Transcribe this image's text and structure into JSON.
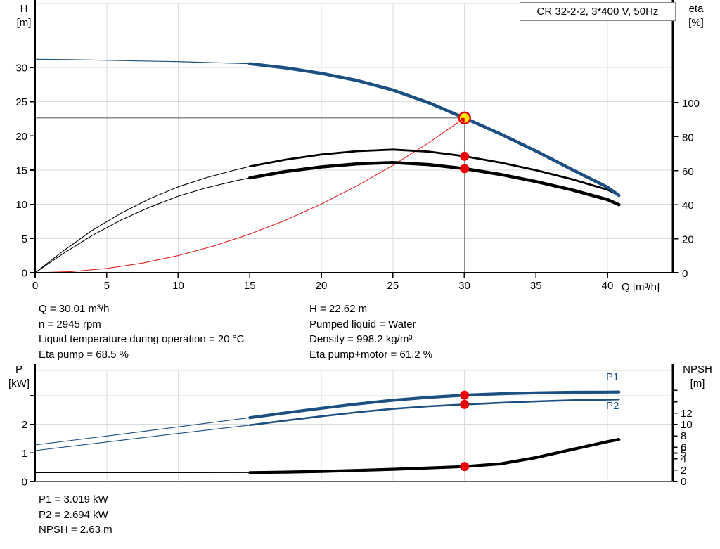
{
  "title_box": "CR 32-2-2, 3*400 V, 50Hz",
  "axes": {
    "top_left": {
      "line1": "H",
      "line2": "[m]"
    },
    "top_right": {
      "line1": "eta",
      "line2": "[%]"
    },
    "top_x": "Q [m³/h]",
    "bottom_left": {
      "line1": "P",
      "line2": "[kW]"
    },
    "bottom_right": {
      "line1": "NPSH",
      "line2": "[m]"
    }
  },
  "curve_labels": {
    "p1": "P1",
    "p2": "P2"
  },
  "operating_point_info": {
    "left": [
      "Q = 30.01 m³/h",
      "n = 2945 rpm",
      "Liquid temperature during operation = 20 °C",
      "Eta pump = 68.5 %"
    ],
    "right": [
      "H = 22.62 m",
      "Pumped liquid = Water",
      "Density = 998.2 kg/m³",
      "Eta pump+motor = 61.2 %"
    ],
    "power": [
      "P1 = 3.019 kW",
      "P2 = 2.694 kW",
      "NPSH = 2.63 m"
    ]
  },
  "colors": {
    "curve_blue": "#1c4f82",
    "curve_red": "#e02020",
    "curve_black": "#000000",
    "marker_red": "#ee0000",
    "marker_ring": "#e00000",
    "marker_yellow": "#ffe400",
    "duty_line_gray": "#8c8c8c",
    "grid": "#dcdcdc",
    "axis": "#000000",
    "bottom_axis_gray": "#666666",
    "label_blue": "#1c4f82"
  },
  "chart_data": [
    {
      "type": "line",
      "title": "CR 32-2-2, 3*400 V, 50Hz",
      "xlabel": "Q [m³/h]",
      "ylabel": "H [m]",
      "y2label": "eta [%]",
      "xlim": [
        0,
        44.6
      ],
      "ylim": [
        0,
        39.4
      ],
      "y2lim": [
        0,
        158
      ],
      "grid": true,
      "x_ticks": [
        0,
        5,
        10,
        15,
        20,
        25,
        30,
        35,
        40
      ],
      "y_ticks": [
        0,
        5,
        10,
        15,
        20,
        25,
        30
      ],
      "y2_ticks": [
        0,
        20,
        40,
        60,
        80,
        100
      ],
      "duty_point": {
        "q": 30.01,
        "h": 22.62
      },
      "dots": [
        {
          "name": "eta-pump-dot",
          "axis": "y2",
          "q": 30.01,
          "v": 68.5
        },
        {
          "name": "eta-pump-motor-dot",
          "axis": "y2",
          "q": 30.01,
          "v": 61.2
        }
      ],
      "series": [
        {
          "name": "system-curve",
          "axis": "y",
          "color": "curve_red",
          "segments": [
            {
              "width": 1.1,
              "points": [
                [
                  0,
                  0
                ],
                [
                  2.5,
                  0.16
                ],
                [
                  5,
                  0.63
                ],
                [
                  7.5,
                  1.41
                ],
                [
                  10,
                  2.51
                ],
                [
                  12.5,
                  3.92
                ],
                [
                  15,
                  5.65
                ],
                [
                  17.5,
                  7.69
                ],
                [
                  20,
                  10.04
                ],
                [
                  22.5,
                  12.71
                ],
                [
                  25,
                  15.7
                ],
                [
                  27.5,
                  18.99
                ],
                [
                  30.01,
                  22.62
                ]
              ]
            }
          ]
        },
        {
          "name": "eta-pump-curve",
          "axis": "y2",
          "color": "curve_black",
          "segments": [
            {
              "width": 1.1,
              "points": [
                [
                  0,
                  0
                ],
                [
                  2,
                  13
                ],
                [
                  4,
                  25
                ],
                [
                  6,
                  35
                ],
                [
                  8,
                  43.5
                ],
                [
                  10,
                  50.5
                ],
                [
                  12,
                  56
                ],
                [
                  14,
                  60.5
                ],
                [
                  15,
                  62.5
                ]
              ]
            },
            {
              "width": 2.8,
              "points": [
                [
                  15,
                  62.5
                ],
                [
                  17.5,
                  66.5
                ],
                [
                  20,
                  69.5
                ],
                [
                  22.5,
                  71.5
                ],
                [
                  25,
                  72.4
                ],
                [
                  27.5,
                  71.2
                ],
                [
                  30.01,
                  68.5
                ],
                [
                  32.5,
                  64.8
                ],
                [
                  35,
                  60.3
                ],
                [
                  37.5,
                  55
                ],
                [
                  40,
                  48.8
                ],
                [
                  40.8,
                  45.5
                ]
              ]
            }
          ]
        },
        {
          "name": "eta-pump-motor-curve",
          "axis": "y2",
          "color": "curve_black",
          "segments": [
            {
              "width": 1.1,
              "points": [
                [
                  0,
                  0
                ],
                [
                  2,
                  11.5
                ],
                [
                  4,
                  22
                ],
                [
                  6,
                  31
                ],
                [
                  8,
                  38.5
                ],
                [
                  10,
                  45
                ],
                [
                  12,
                  50
                ],
                [
                  14,
                  54
                ],
                [
                  15,
                  55.8
                ]
              ]
            },
            {
              "width": 4.5,
              "points": [
                [
                  15,
                  55.8
                ],
                [
                  17.5,
                  59.5
                ],
                [
                  20,
                  62.2
                ],
                [
                  22.5,
                  64
                ],
                [
                  25,
                  64.8
                ],
                [
                  27.5,
                  63.6
                ],
                [
                  30.01,
                  61.2
                ],
                [
                  32.5,
                  57.8
                ],
                [
                  35,
                  53.6
                ],
                [
                  37.5,
                  48.7
                ],
                [
                  40,
                  43
                ],
                [
                  40.8,
                  40
                ]
              ]
            }
          ]
        },
        {
          "name": "head-curve",
          "axis": "y",
          "color": "curve_blue",
          "segments": [
            {
              "width": 1.2,
              "points": [
                [
                  0,
                  31.2
                ],
                [
                  2.5,
                  31.15
                ],
                [
                  5,
                  31.05
                ],
                [
                  7.5,
                  30.95
                ],
                [
                  10,
                  30.85
                ],
                [
                  12.5,
                  30.7
                ],
                [
                  15,
                  30.55
                ]
              ]
            },
            {
              "width": 4.5,
              "points": [
                [
                  15,
                  30.55
                ],
                [
                  17.5,
                  29.95
                ],
                [
                  20,
                  29.15
                ],
                [
                  22.5,
                  28.1
                ],
                [
                  25,
                  26.7
                ],
                [
                  27.5,
                  24.85
                ],
                [
                  30.01,
                  22.62
                ],
                [
                  32.5,
                  20.3
                ],
                [
                  35,
                  17.8
                ],
                [
                  37.5,
                  15.1
                ],
                [
                  40,
                  12.5
                ],
                [
                  40.8,
                  11.3
                ]
              ]
            }
          ]
        }
      ]
    },
    {
      "type": "line",
      "xlabel": "Q [m³/h]",
      "ylabel": "P [kW]",
      "y2label": "NPSH [m]",
      "xlim": [
        0,
        44.6
      ],
      "ylim": [
        0,
        3.88
      ],
      "y2lim": [
        0,
        19.5
      ],
      "grid": true,
      "x_ticks": [
        5,
        10,
        15,
        20,
        25,
        30,
        35,
        40
      ],
      "y_ticks": [
        {
          "v": 0,
          "label": "0"
        },
        {
          "v": 1,
          "label": "1"
        },
        {
          "v": 2,
          "label": "2"
        },
        {
          "v": 3,
          "label": ""
        }
      ],
      "y2_ticks": [
        {
          "v": 0,
          "label": "0"
        },
        {
          "v": 2,
          "label": "2"
        },
        {
          "v": 4,
          "label": "4"
        },
        {
          "v": 5,
          "label": "5"
        },
        {
          "v": 6,
          "label": "6"
        },
        {
          "v": 8,
          "label": "8"
        },
        {
          "v": 10,
          "label": "10"
        },
        {
          "v": 12,
          "label": "12"
        },
        {
          "v": 14,
          "label": ""
        },
        {
          "v": 16,
          "label": ""
        }
      ],
      "dots": [
        {
          "name": "p1-dot",
          "axis": "y",
          "q": 30.01,
          "v": 3.019
        },
        {
          "name": "p2-dot",
          "axis": "y",
          "q": 30.01,
          "v": 2.694
        },
        {
          "name": "npsh-dot",
          "axis": "y2",
          "q": 30.01,
          "v": 2.63
        }
      ],
      "series": [
        {
          "name": "p1-curve",
          "axis": "y",
          "color": "curve_blue",
          "segments": [
            {
              "width": 1.1,
              "points": [
                [
                  0,
                  1.28
                ],
                [
                  5,
                  1.59
                ],
                [
                  10,
                  1.91
                ],
                [
                  15,
                  2.23
                ]
              ]
            },
            {
              "width": 4.2,
              "points": [
                [
                  15,
                  2.23
                ],
                [
                  17.5,
                  2.4
                ],
                [
                  20,
                  2.56
                ],
                [
                  22.5,
                  2.71
                ],
                [
                  25,
                  2.84
                ],
                [
                  27.5,
                  2.94
                ],
                [
                  30.01,
                  3.019
                ],
                [
                  32.5,
                  3.07
                ],
                [
                  35,
                  3.1
                ],
                [
                  37.5,
                  3.12
                ],
                [
                  40,
                  3.125
                ],
                [
                  40.8,
                  3.13
                ]
              ]
            }
          ]
        },
        {
          "name": "p2-curve",
          "axis": "y",
          "color": "curve_blue",
          "segments": [
            {
              "width": 1.1,
              "points": [
                [
                  0,
                  1.08
                ],
                [
                  5,
                  1.38
                ],
                [
                  10,
                  1.68
                ],
                [
                  15,
                  1.97
                ]
              ]
            },
            {
              "width": 2.6,
              "points": [
                [
                  15,
                  1.97
                ],
                [
                  17.5,
                  2.13
                ],
                [
                  20,
                  2.28
                ],
                [
                  22.5,
                  2.42
                ],
                [
                  25,
                  2.54
                ],
                [
                  27.5,
                  2.63
                ],
                [
                  30.01,
                  2.694
                ],
                [
                  32.5,
                  2.75
                ],
                [
                  35,
                  2.8
                ],
                [
                  37.5,
                  2.84
                ],
                [
                  40,
                  2.86
                ],
                [
                  40.8,
                  2.87
                ]
              ]
            }
          ]
        },
        {
          "name": "npsh-curve",
          "axis": "y2",
          "color": "curve_black",
          "segments": [
            {
              "width": 1.1,
              "points": [
                [
                  0,
                  1.55
                ],
                [
                  5,
                  1.55
                ],
                [
                  10,
                  1.55
                ],
                [
                  15,
                  1.57
                ]
              ]
            },
            {
              "width": 4.2,
              "points": [
                [
                  15,
                  1.57
                ],
                [
                  17.5,
                  1.65
                ],
                [
                  20,
                  1.78
                ],
                [
                  22.5,
                  1.95
                ],
                [
                  25,
                  2.15
                ],
                [
                  27.5,
                  2.38
                ],
                [
                  30.01,
                  2.63
                ],
                [
                  32.5,
                  3.1
                ],
                [
                  35,
                  4.2
                ],
                [
                  37.5,
                  5.6
                ],
                [
                  40,
                  7.0
                ],
                [
                  40.8,
                  7.4
                ]
              ]
            }
          ]
        }
      ]
    }
  ]
}
